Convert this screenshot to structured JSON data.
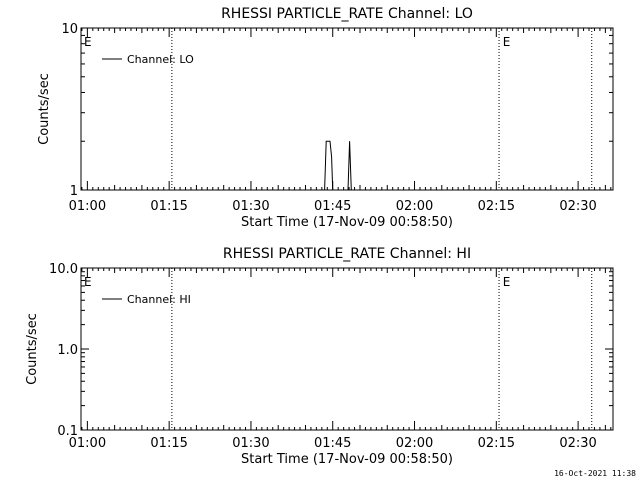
{
  "chart_data": [
    {
      "type": "line",
      "title": "RHESSI PARTICLE_RATE Channel: LO",
      "xlabel": "Start Time (17-Nov-09 00:58:50)",
      "ylabel": "Counts/sec",
      "yscale": "log",
      "ylim": [
        1,
        10
      ],
      "yticks": [
        "1",
        "10"
      ],
      "x_tick_labels": [
        "01:00",
        "01:15",
        "01:30",
        "01:45",
        "02:00",
        "02:15",
        "02:30"
      ],
      "xlim_minutes": [
        58.833,
        156.4
      ],
      "event_lines_minutes": [
        75.5,
        135.5,
        152.5
      ],
      "event_markers": [
        {
          "at_minute": 59.2,
          "label": "E"
        },
        {
          "at_minute": 136.0,
          "label": "E"
        }
      ],
      "legend": {
        "position": "top-left",
        "entries": [
          "Channel: LO"
        ]
      },
      "series": [
        {
          "name": "Channel: LO",
          "points": [
            [
              103.5,
              1
            ],
            [
              103.8,
              2
            ],
            [
              104.5,
              2
            ],
            [
              104.8,
              1.6
            ],
            [
              105.0,
              1
            ],
            [
              107.8,
              1
            ],
            [
              108.1,
              2
            ],
            [
              108.4,
              1
            ]
          ]
        }
      ]
    },
    {
      "type": "line",
      "title": "RHESSI PARTICLE_RATE Channel: HI",
      "xlabel": "Start Time (17-Nov-09 00:58:50)",
      "ylabel": "Counts/sec",
      "yscale": "log",
      "ylim": [
        0.1,
        10
      ],
      "yticks": [
        "0.1",
        "1.0",
        "10.0"
      ],
      "x_tick_labels": [
        "01:00",
        "01:15",
        "01:30",
        "01:45",
        "02:00",
        "02:15",
        "02:30"
      ],
      "xlim_minutes": [
        58.833,
        156.4
      ],
      "event_lines_minutes": [
        75.5,
        135.5,
        152.5
      ],
      "event_markers": [
        {
          "at_minute": 59.2,
          "label": "E"
        },
        {
          "at_minute": 136.0,
          "label": "E"
        }
      ],
      "legend": {
        "position": "top-left",
        "entries": [
          "Channel: HI"
        ]
      },
      "series": [
        {
          "name": "Channel: HI",
          "points": []
        }
      ]
    }
  ],
  "footer_timestamp": "16-Oct-2021 11:38"
}
